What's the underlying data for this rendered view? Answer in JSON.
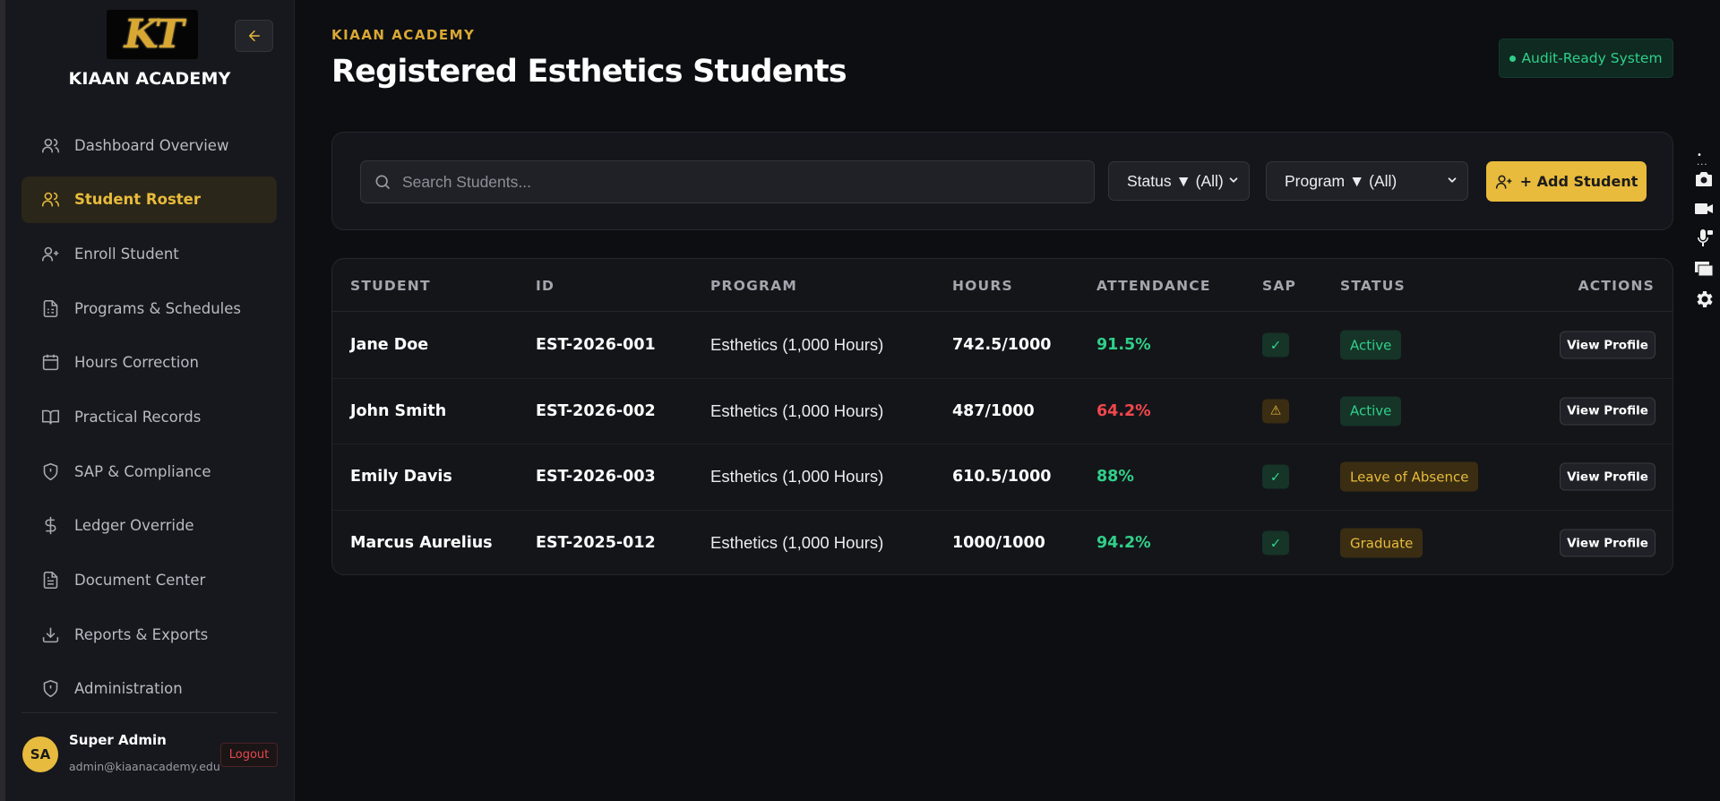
{
  "sidebar": {
    "logo_text": "KT",
    "brand_name": "KIAAN ACADEMY",
    "items": [
      {
        "label": "Dashboard Overview",
        "icon": "users-icon",
        "active": false
      },
      {
        "label": "Student Roster",
        "icon": "users-icon",
        "active": true
      },
      {
        "label": "Enroll Student",
        "icon": "user-plus-icon",
        "active": false
      },
      {
        "label": "Programs & Schedules",
        "icon": "clipboard-list-icon",
        "active": false
      },
      {
        "label": "Hours Correction",
        "icon": "calendar-icon",
        "active": false
      },
      {
        "label": "Practical Records",
        "icon": "book-open-icon",
        "active": false
      },
      {
        "label": "SAP & Compliance",
        "icon": "shield-alert-icon",
        "active": false
      },
      {
        "label": "Ledger Override",
        "icon": "dollar-icon",
        "active": false
      },
      {
        "label": "Document Center",
        "icon": "file-text-icon",
        "active": false
      },
      {
        "label": "Reports & Exports",
        "icon": "download-icon",
        "active": false
      },
      {
        "label": "Administration",
        "icon": "shield-alert-icon",
        "active": false
      }
    ],
    "user": {
      "initials": "SA",
      "name": "Super Admin",
      "email": "admin@kiaanacademy.edu",
      "logout_label": "Logout"
    }
  },
  "header": {
    "eyebrow": "KIAAN ACADEMY",
    "title": "Registered Esthetics Students",
    "badge": "Audit-Ready System"
  },
  "filters": {
    "search_placeholder": "Search Students...",
    "status_select": "Status ▼ (All)",
    "program_select": "Program ▼ (All)",
    "add_button": "+ Add Student"
  },
  "table": {
    "columns": [
      "STUDENT",
      "ID",
      "PROGRAM",
      "HOURS",
      "ATTENDANCE",
      "SAP",
      "STATUS",
      "ACTIONS"
    ],
    "rows": [
      {
        "name": "Jane Doe",
        "id": "EST-2026-001",
        "program": "Esthetics (1,000 Hours)",
        "hours": "742.5/1000",
        "attendance": "91.5%",
        "sap": "✓",
        "status": "Active",
        "action": "View Profile"
      },
      {
        "name": "John Smith",
        "id": "EST-2026-002",
        "program": "Esthetics (1,000 Hours)",
        "hours": "487/1000",
        "attendance": "64.2%",
        "sap": "⚠",
        "status": "Active",
        "action": "View Profile"
      },
      {
        "name": "Emily Davis",
        "id": "EST-2026-003",
        "program": "Esthetics (1,000 Hours)",
        "hours": "610.5/1000",
        "attendance": "88%",
        "sap": "✓",
        "status": "Leave of Absence",
        "action": "View Profile"
      },
      {
        "name": "Marcus Aurelius",
        "id": "EST-2025-012",
        "program": "Esthetics (1,000 Hours)",
        "hours": "1000/1000",
        "attendance": "94.2%",
        "sap": "✓",
        "status": "Graduate",
        "action": "View Profile"
      }
    ]
  },
  "colors": {
    "accent": "#e8bb3c",
    "success": "#2fd08a",
    "danger": "#f0474c",
    "background": "#0d0e12"
  },
  "side_tools": [
    "camera-icon",
    "video-icon",
    "microphone-icon",
    "window-icon",
    "gear-icon"
  ]
}
